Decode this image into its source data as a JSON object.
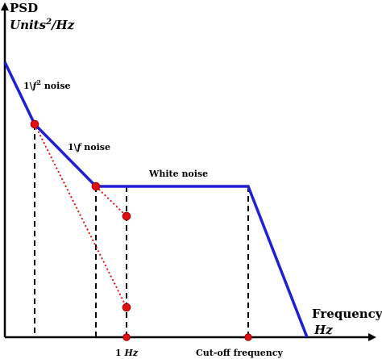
{
  "y_axis": {
    "label_line1": "PSD",
    "label_units": "Units",
    "label_exponent": "2",
    "label_per": "/Hz"
  },
  "x_axis": {
    "label_line1": "Frequency",
    "label_units": "Hz"
  },
  "regions": {
    "pink_prefix": "1\\",
    "pink_f": "f",
    "pink_exponent": "2",
    "pink_suffix": " noise",
    "flicker_prefix": "1\\",
    "flicker_f": "f",
    "flicker_suffix": " noise",
    "white": "White noise"
  },
  "ticks": {
    "one_hz_num": "1 ",
    "one_hz_unit": "Hz",
    "cutoff": "Cut-off frequency"
  },
  "colors": {
    "curve": "#1f1fd6",
    "markers": "#e01010",
    "axes": "#000000",
    "dashes": "#000000"
  }
}
